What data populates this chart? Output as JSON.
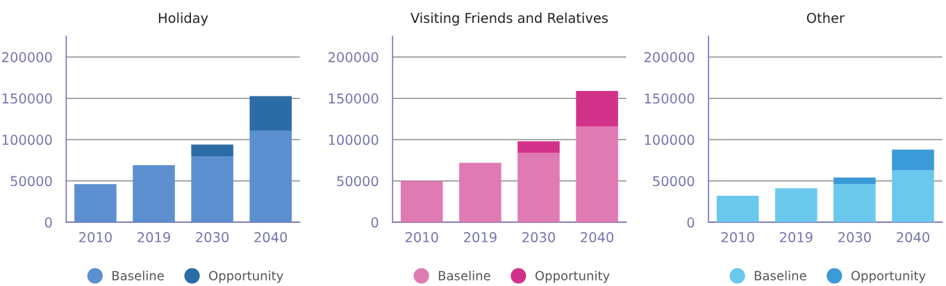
{
  "chart_data": [
    {
      "type": "bar",
      "title": "Holiday",
      "categories": [
        "2010",
        "2019",
        "2030",
        "2040"
      ],
      "stacked": true,
      "series": [
        {
          "name": "Baseline",
          "color": "#5b8fd0",
          "values": [
            46000,
            69000,
            80000,
            111000
          ]
        },
        {
          "name": "Opportunity",
          "color": "#2b6ca5",
          "values": [
            null,
            null,
            14000,
            41500
          ]
        }
      ],
      "ylim": [
        0,
        225000
      ],
      "yticks": [
        0,
        50000,
        100000,
        150000,
        200000
      ],
      "grid": "y",
      "legend": "bottom"
    },
    {
      "type": "bar",
      "title": "Visiting Friends and Relatives",
      "categories": [
        "2010",
        "2019",
        "2030",
        "2040"
      ],
      "stacked": true,
      "series": [
        {
          "name": "Baseline",
          "color": "#e07ab2",
          "values": [
            50000,
            72000,
            84000,
            116000
          ]
        },
        {
          "name": "Opportunity",
          "color": "#d2318a",
          "values": [
            null,
            null,
            14000,
            43000
          ]
        }
      ],
      "ylim": [
        0,
        225000
      ],
      "yticks": [
        0,
        50000,
        100000,
        150000,
        200000
      ],
      "grid": "y",
      "legend": "bottom"
    },
    {
      "type": "bar",
      "title": "Other",
      "categories": [
        "2010",
        "2019",
        "2030",
        "2040"
      ],
      "stacked": true,
      "series": [
        {
          "name": "Baseline",
          "color": "#6ac8ec",
          "values": [
            32000,
            41000,
            46000,
            63000
          ]
        },
        {
          "name": "Opportunity",
          "color": "#3b9ad8",
          "values": [
            null,
            null,
            8000,
            25000
          ]
        }
      ],
      "ylim": [
        0,
        225000
      ],
      "yticks": [
        0,
        50000,
        100000,
        150000,
        200000
      ],
      "grid": "y",
      "legend": "bottom"
    }
  ]
}
